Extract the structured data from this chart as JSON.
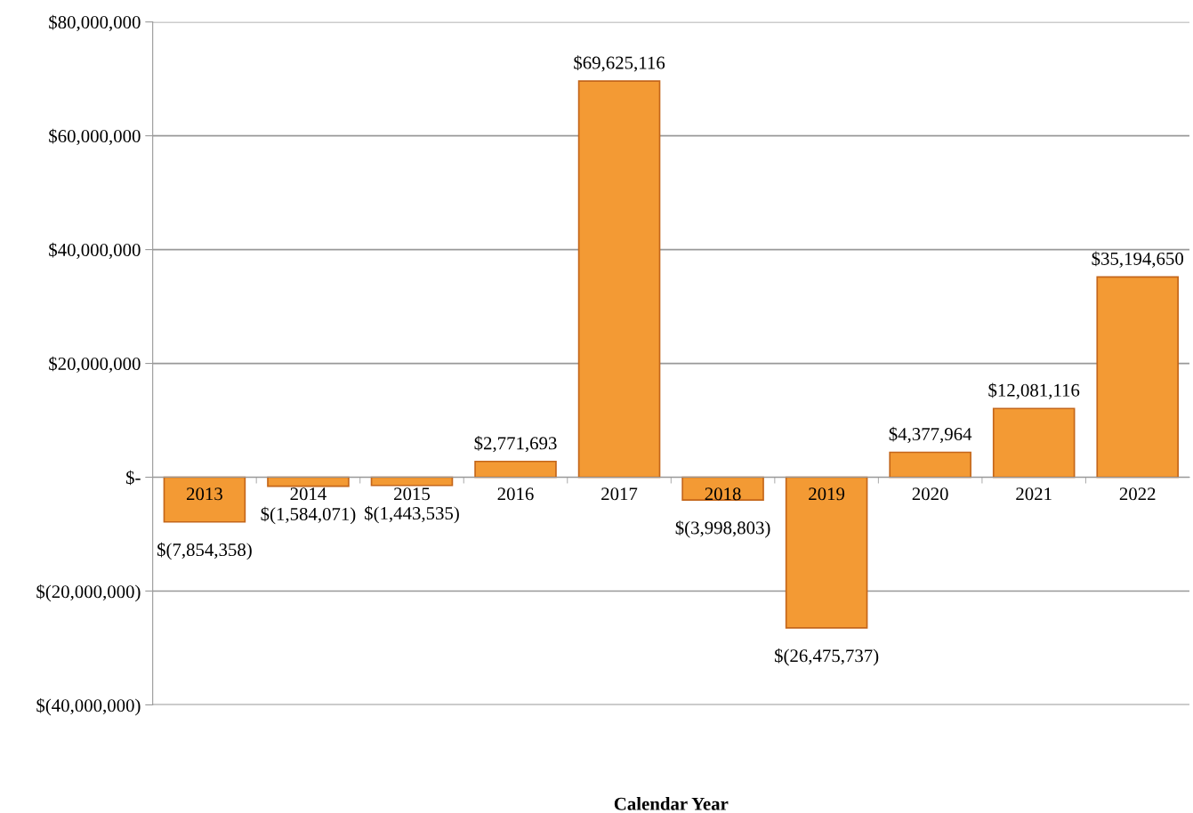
{
  "chart_data": {
    "type": "bar",
    "xlabel": "Calendar Year",
    "categories": [
      "2013",
      "2014",
      "2015",
      "2016",
      "2017",
      "2018",
      "2019",
      "2020",
      "2021",
      "2022"
    ],
    "values": [
      -7854358,
      -1584071,
      -1443535,
      2771693,
      69625116,
      -3998803,
      -26475737,
      4377964,
      12081116,
      35194650
    ],
    "value_labels": [
      "$(7,854,358)",
      "$(1,584,071)",
      "$(1,443,535)",
      "$2,771,693",
      "$69,625,116",
      "$(3,998,803)",
      "$(26,475,737)",
      "$4,377,964",
      "$12,081,116",
      "$35,194,650"
    ],
    "color": "#f39a34",
    "ylim": [
      -40000000,
      80000000
    ],
    "yticks": [
      {
        "value": -40000000,
        "label": "$(40,000,000)"
      },
      {
        "value": -20000000,
        "label": "$(20,000,000)"
      },
      {
        "value": 0,
        "label": "$-"
      },
      {
        "value": 20000000,
        "label": "$20,000,000"
      },
      {
        "value": 40000000,
        "label": "$40,000,000"
      },
      {
        "value": 60000000,
        "label": "$60,000,000"
      },
      {
        "value": 80000000,
        "label": "$80,000,000"
      }
    ],
    "grid": "y"
  }
}
